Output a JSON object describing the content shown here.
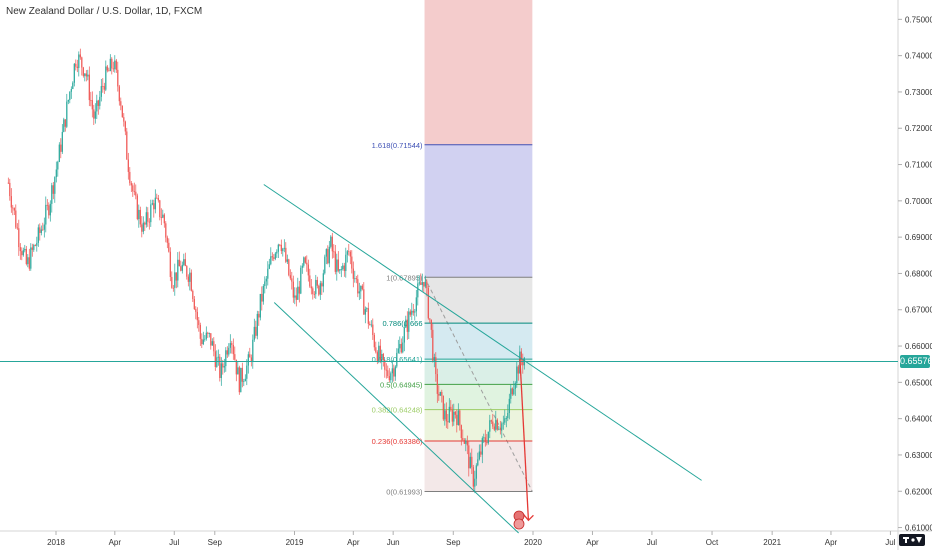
{
  "header": {
    "symbol_title": "New Zealand Dollar / U.S. Dollar, 1D, FXCM"
  },
  "colors": {
    "up": "#26a69a",
    "down": "#ef5350",
    "channel": "#26a69a",
    "current_price": "#26a69a",
    "fib_top_fill": "#f4cccc",
    "fib_1618_zone": "#ccccf0",
    "fib_1_zone": "#e3e3e3",
    "fib_786_zone": "#d0e8ef",
    "fib_618_zone": "#d6ede4",
    "fib_5_zone": "#ddf2dd",
    "fib_382_zone": "#eaf3d9",
    "fib_236_zone": "#f2e6e6",
    "fib_0_zone": "#f6dede",
    "projection_arrow": "#e53935"
  },
  "chart_data": {
    "type": "candlestick",
    "title": "New Zealand Dollar / U.S. Dollar, 1D, FXCM",
    "y_ticks": [
      "0.75000",
      "0.74000",
      "0.73000",
      "0.72000",
      "0.71000",
      "0.70000",
      "0.69000",
      "0.68000",
      "0.67000",
      "0.66000",
      "0.65000",
      "0.64000",
      "0.63000",
      "0.62000",
      "0.61000"
    ],
    "ylim": [
      0.6085,
      0.7545
    ],
    "x_ticks": [
      "2018",
      "Apr",
      "Jul",
      "Sep",
      "2019",
      "Apr",
      "Jun",
      "Sep",
      "2020",
      "Apr",
      "Jul",
      "Oct",
      "2021",
      "Apr",
      "Jul"
    ],
    "x_tick_dates": [
      "2018-01-01",
      "2018-04-01",
      "2018-07-01",
      "2018-09-01",
      "2019-01-01",
      "2019-04-01",
      "2019-06-01",
      "2019-09-01",
      "2020-01-01",
      "2020-04-01",
      "2020-07-01",
      "2020-10-01",
      "2021-01-01",
      "2021-04-01",
      "2021-07-01"
    ],
    "current_price": {
      "label": "0.65576",
      "value": 0.65576
    },
    "price_path": [
      [
        "2017-10-20",
        0.705
      ],
      [
        "2017-11-05",
        0.69
      ],
      [
        "2017-11-17",
        0.682
      ],
      [
        "2017-12-05",
        0.69
      ],
      [
        "2017-12-20",
        0.698
      ],
      [
        "2018-01-05",
        0.712
      ],
      [
        "2018-01-20",
        0.728
      ],
      [
        "2018-02-01",
        0.74
      ],
      [
        "2018-02-15",
        0.736
      ],
      [
        "2018-03-01",
        0.722
      ],
      [
        "2018-03-15",
        0.733
      ],
      [
        "2018-03-30",
        0.738
      ],
      [
        "2018-04-10",
        0.728
      ],
      [
        "2018-04-20",
        0.712
      ],
      [
        "2018-05-01",
        0.7
      ],
      [
        "2018-05-15",
        0.692
      ],
      [
        "2018-05-31",
        0.7
      ],
      [
        "2018-06-15",
        0.695
      ],
      [
        "2018-06-28",
        0.678
      ],
      [
        "2018-07-10",
        0.682
      ],
      [
        "2018-07-25",
        0.68
      ],
      [
        "2018-08-10",
        0.662
      ],
      [
        "2018-08-25",
        0.662
      ],
      [
        "2018-09-10",
        0.652
      ],
      [
        "2018-09-25",
        0.664
      ],
      [
        "2018-10-08",
        0.65
      ],
      [
        "2018-10-25",
        0.656
      ],
      [
        "2018-11-10",
        0.672
      ],
      [
        "2018-11-30",
        0.686
      ],
      [
        "2018-12-10",
        0.69
      ],
      [
        "2019-01-02",
        0.672
      ],
      [
        "2019-01-15",
        0.682
      ],
      [
        "2019-02-05",
        0.675
      ],
      [
        "2019-02-25",
        0.688
      ],
      [
        "2019-03-10",
        0.679
      ],
      [
        "2019-03-25",
        0.686
      ],
      [
        "2019-04-05",
        0.678
      ],
      [
        "2019-04-20",
        0.67
      ],
      [
        "2019-05-05",
        0.66
      ],
      [
        "2019-05-20",
        0.652
      ],
      [
        "2019-06-01",
        0.654
      ],
      [
        "2019-06-15",
        0.662
      ],
      [
        "2019-07-01",
        0.671
      ],
      [
        "2019-07-18",
        0.679
      ],
      [
        "2019-07-28",
        0.666
      ],
      [
        "2019-08-05",
        0.65
      ],
      [
        "2019-08-20",
        0.64
      ],
      [
        "2019-09-05",
        0.642
      ],
      [
        "2019-09-20",
        0.633
      ],
      [
        "2019-10-01",
        0.623
      ],
      [
        "2019-10-15",
        0.632
      ],
      [
        "2019-11-01",
        0.64
      ],
      [
        "2019-11-20",
        0.638
      ],
      [
        "2019-12-01",
        0.65
      ],
      [
        "2019-12-12",
        0.656
      ],
      [
        "2019-12-20",
        0.657
      ]
    ],
    "channel": {
      "upper": [
        [
          "2018-11-15",
          0.7045
        ],
        [
          "2020-09-15",
          0.623
        ]
      ],
      "lower": [
        [
          "2018-12-01",
          0.672
        ],
        [
          "2019-12-10",
          0.6085
        ]
      ]
    },
    "fibonacci": {
      "start": [
        "2019-07-19",
        0.67895
      ],
      "end": [
        "2019-12-31",
        0.61993
      ],
      "levels": [
        {
          "ratio": 1.618,
          "label": "1.618(0.71544)",
          "value": 0.71544,
          "color": "#3f51b5"
        },
        {
          "ratio": 1,
          "label": "1(0.67895)",
          "value": 0.67895,
          "color": "#7f7f7f"
        },
        {
          "ratio": 0.786,
          "label": "0.786(0.666",
          "value": 0.66632,
          "color": "#00897b"
        },
        {
          "ratio": 0.618,
          "label": "0.618(0.65641)",
          "value": 0.65641,
          "color": "#26a69a"
        },
        {
          "ratio": 0.5,
          "label": "0.5(0.64945)",
          "value": 0.64945,
          "color": "#43a047"
        },
        {
          "ratio": 0.382,
          "label": "0.382(0.64248)",
          "value": 0.64248,
          "color": "#9ccc65"
        },
        {
          "ratio": 0.236,
          "label": "0.236(0.63386)",
          "value": 0.63386,
          "color": "#e53935"
        },
        {
          "ratio": 0,
          "label": "0(0.61993)",
          "value": 0.61993,
          "color": "#7f7f7f"
        }
      ],
      "top_band_to": 0.7545
    },
    "projection": {
      "from": [
        "2019-12-12",
        0.6565
      ],
      "to": [
        "2019-12-25",
        0.612
      ]
    }
  }
}
